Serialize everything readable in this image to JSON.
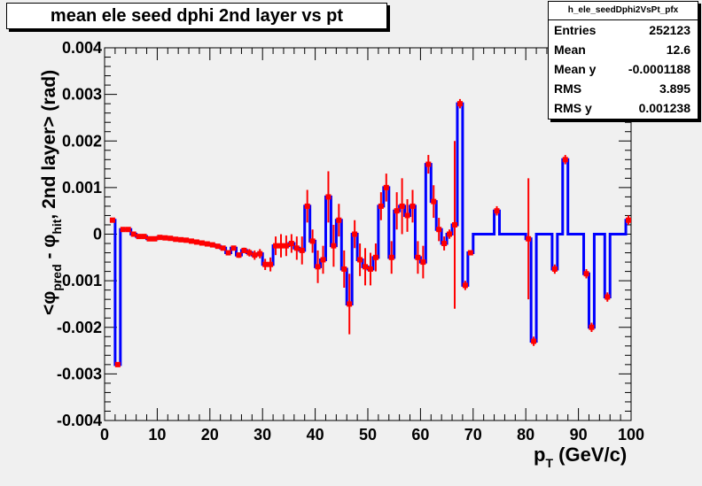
{
  "title": "mean ele seed dphi 2nd layer vs pt",
  "stats": {
    "name": "h_ele_seedDphi2VsPt_pfx",
    "rows": [
      {
        "label": "Entries",
        "value": "252123"
      },
      {
        "label": "Mean",
        "value": "12.6"
      },
      {
        "label": "Mean y",
        "value": "-0.0001188"
      },
      {
        "label": "RMS",
        "value": "3.895"
      },
      {
        "label": "RMS y",
        "value": "0.001238"
      }
    ]
  },
  "colors": {
    "line": "#0000ff",
    "marker": "#ff0000",
    "frame": "#000000",
    "frame_bg": "#f0f0f0"
  },
  "chart_data": {
    "type": "line",
    "subtype": "profile-histogram with error bars",
    "xlim": [
      0,
      100
    ],
    "ylim": [
      -0.004,
      0.004
    ],
    "x_ticks": [
      "0",
      "10",
      "20",
      "30",
      "40",
      "50",
      "60",
      "70",
      "80",
      "90",
      "100"
    ],
    "y_ticks": [
      "-0.004",
      "-0.003",
      "-0.002",
      "-0.001",
      "0",
      "0.001",
      "0.002",
      "0.003",
      "0.004"
    ],
    "bin_width": 1,
    "series": [
      {
        "points": [
          {
            "x": 1.5,
            "y": 0.0003,
            "err": 5e-05
          },
          {
            "x": 2.5,
            "y": -0.0028,
            "err": 5e-05
          },
          {
            "x": 3.5,
            "y": 0.0001,
            "err": 2e-05
          },
          {
            "x": 4.5,
            "y": 0.0001,
            "err": 2e-05
          },
          {
            "x": 5.5,
            "y": 0.0,
            "err": 2e-05
          },
          {
            "x": 6.5,
            "y": -5e-05,
            "err": 2e-05
          },
          {
            "x": 7.5,
            "y": -5e-05,
            "err": 2e-05
          },
          {
            "x": 8.5,
            "y": -0.0001,
            "err": 2e-05
          },
          {
            "x": 9.5,
            "y": -0.0001,
            "err": 2e-05
          },
          {
            "x": 10.5,
            "y": -7e-05,
            "err": 2e-05
          },
          {
            "x": 11.5,
            "y": -8e-05,
            "err": 2e-05
          },
          {
            "x": 12.5,
            "y": -9e-05,
            "err": 2e-05
          },
          {
            "x": 13.5,
            "y": -0.00011,
            "err": 2e-05
          },
          {
            "x": 14.5,
            "y": -0.00012,
            "err": 2e-05
          },
          {
            "x": 15.5,
            "y": -0.00013,
            "err": 2e-05
          },
          {
            "x": 16.5,
            "y": -0.00015,
            "err": 2e-05
          },
          {
            "x": 17.5,
            "y": -0.00017,
            "err": 3e-05
          },
          {
            "x": 18.5,
            "y": -0.00019,
            "err": 3e-05
          },
          {
            "x": 19.5,
            "y": -0.00021,
            "err": 3e-05
          },
          {
            "x": 20.5,
            "y": -0.00023,
            "err": 3e-05
          },
          {
            "x": 21.5,
            "y": -0.00026,
            "err": 3e-05
          },
          {
            "x": 22.5,
            "y": -0.0003,
            "err": 4e-05
          },
          {
            "x": 23.5,
            "y": -0.0004,
            "err": 5e-05
          },
          {
            "x": 24.5,
            "y": -0.0003,
            "err": 5e-05
          },
          {
            "x": 25.5,
            "y": -0.00045,
            "err": 6e-05
          },
          {
            "x": 26.5,
            "y": -0.00035,
            "err": 6e-05
          },
          {
            "x": 27.5,
            "y": -0.0004,
            "err": 8e-05
          },
          {
            "x": 28.5,
            "y": -0.00045,
            "err": 0.0001
          },
          {
            "x": 29.5,
            "y": -0.00042,
            "err": 0.0001
          },
          {
            "x": 30.5,
            "y": -0.00065,
            "err": 0.00012
          },
          {
            "x": 31.5,
            "y": -0.00065,
            "err": 0.00015
          },
          {
            "x": 32.5,
            "y": -0.00025,
            "err": 0.0002
          },
          {
            "x": 33.5,
            "y": -0.00025,
            "err": 0.00025
          },
          {
            "x": 34.5,
            "y": -0.00025,
            "err": 0.00022
          },
          {
            "x": 35.5,
            "y": -0.0002,
            "err": 0.0002
          },
          {
            "x": 36.5,
            "y": -0.0003,
            "err": 0.00025
          },
          {
            "x": 37.5,
            "y": -0.00035,
            "err": 0.0003
          },
          {
            "x": 38.5,
            "y": 0.0006,
            "err": 0.00035
          },
          {
            "x": 39.5,
            "y": -0.00015,
            "err": 0.00025
          },
          {
            "x": 40.5,
            "y": -0.0007,
            "err": 0.00035
          },
          {
            "x": 41.5,
            "y": -0.00055,
            "err": 0.0003
          },
          {
            "x": 42.5,
            "y": 0.0008,
            "err": 0.00055
          },
          {
            "x": 43.5,
            "y": -0.00025,
            "err": 0.00045
          },
          {
            "x": 44.5,
            "y": 0.0003,
            "err": 0.00035
          },
          {
            "x": 45.5,
            "y": -0.00075,
            "err": 0.0004
          },
          {
            "x": 46.5,
            "y": -0.0015,
            "err": 0.00065
          },
          {
            "x": 47.5,
            "y": 0.0,
            "err": 0.0003
          },
          {
            "x": 48.5,
            "y": -0.00055,
            "err": 0.00035
          },
          {
            "x": 49.5,
            "y": -0.0007,
            "err": 0.0004
          },
          {
            "x": 50.5,
            "y": -0.00075,
            "err": 0.00035
          },
          {
            "x": 51.5,
            "y": -0.0005,
            "err": 0.0003
          },
          {
            "x": 52.5,
            "y": 0.0006,
            "err": 0.0003
          },
          {
            "x": 53.5,
            "y": 0.001,
            "err": 0.0003
          },
          {
            "x": 54.5,
            "y": -0.0005,
            "err": 0.00035
          },
          {
            "x": 55.5,
            "y": 0.0005,
            "err": 0.0004
          },
          {
            "x": 56.5,
            "y": 0.0006,
            "err": 0.0006
          },
          {
            "x": 57.5,
            "y": 0.0004,
            "err": 0.00035
          },
          {
            "x": 58.5,
            "y": 0.0006,
            "err": 0.00035
          },
          {
            "x": 59.5,
            "y": -0.0005,
            "err": 0.00035
          },
          {
            "x": 60.5,
            "y": -0.0006,
            "err": 0.00035
          },
          {
            "x": 61.5,
            "y": 0.0015,
            "err": 0.0002
          },
          {
            "x": 62.5,
            "y": 0.0007,
            "err": 0.00035
          },
          {
            "x": 63.5,
            "y": 0.0001,
            "err": 0.00025
          },
          {
            "x": 64.5,
            "y": -0.0002,
            "err": 0.00015
          },
          {
            "x": 65.5,
            "y": 0.0,
            "err": 0.0001
          },
          {
            "x": 66.5,
            "y": 0.0002,
            "err": 0.0018
          },
          {
            "x": 67.5,
            "y": 0.0028,
            "err": 0.0001
          },
          {
            "x": 68.5,
            "y": -0.0011,
            "err": 0.0001
          },
          {
            "x": 69.5,
            "y": -0.0004,
            "err": 5e-05
          },
          {
            "x": 70.5,
            "y": 0.0,
            "err": 0.0
          },
          {
            "x": 71.5,
            "y": 0.0,
            "err": 0.0
          },
          {
            "x": 72.5,
            "y": 0.0,
            "err": 0.0
          },
          {
            "x": 73.5,
            "y": 0.0,
            "err": 0.0
          },
          {
            "x": 74.5,
            "y": 0.0005,
            "err": 0.0001
          },
          {
            "x": 75.5,
            "y": 0.0,
            "err": 0.0
          },
          {
            "x": 76.5,
            "y": 0.0,
            "err": 0.0
          },
          {
            "x": 77.5,
            "y": 0.0,
            "err": 0.0
          },
          {
            "x": 78.5,
            "y": 0.0,
            "err": 0.0
          },
          {
            "x": 79.5,
            "y": 0.0,
            "err": 0.0
          },
          {
            "x": 80.5,
            "y": -0.0001,
            "err": 0.0013
          },
          {
            "x": 81.5,
            "y": -0.0023,
            "err": 0.0001
          },
          {
            "x": 82.5,
            "y": 0.0,
            "err": 0.0
          },
          {
            "x": 83.5,
            "y": 0.0,
            "err": 0.0
          },
          {
            "x": 84.5,
            "y": 0.0,
            "err": 0.0
          },
          {
            "x": 85.5,
            "y": -0.00075,
            "err": 0.0001
          },
          {
            "x": 86.5,
            "y": 0.0,
            "err": 0.0
          },
          {
            "x": 87.5,
            "y": 0.0016,
            "err": 0.0001
          },
          {
            "x": 88.5,
            "y": 0.0,
            "err": 0.0
          },
          {
            "x": 89.5,
            "y": 0.0,
            "err": 0.0
          },
          {
            "x": 90.5,
            "y": 0.0,
            "err": 0.0
          },
          {
            "x": 91.5,
            "y": -0.00085,
            "err": 0.0001
          },
          {
            "x": 92.5,
            "y": -0.002,
            "err": 0.0001
          },
          {
            "x": 93.5,
            "y": 0.0,
            "err": 0.0
          },
          {
            "x": 94.5,
            "y": 0.0,
            "err": 0.0
          },
          {
            "x": 95.5,
            "y": -0.00135,
            "err": 0.0001
          },
          {
            "x": 96.5,
            "y": 0.0,
            "err": 0.0
          },
          {
            "x": 97.5,
            "y": 0.0,
            "err": 0.0
          },
          {
            "x": 98.5,
            "y": 0.0,
            "err": 0.0
          },
          {
            "x": 99.5,
            "y": 0.0003,
            "err": 0.0001
          }
        ]
      }
    ]
  }
}
